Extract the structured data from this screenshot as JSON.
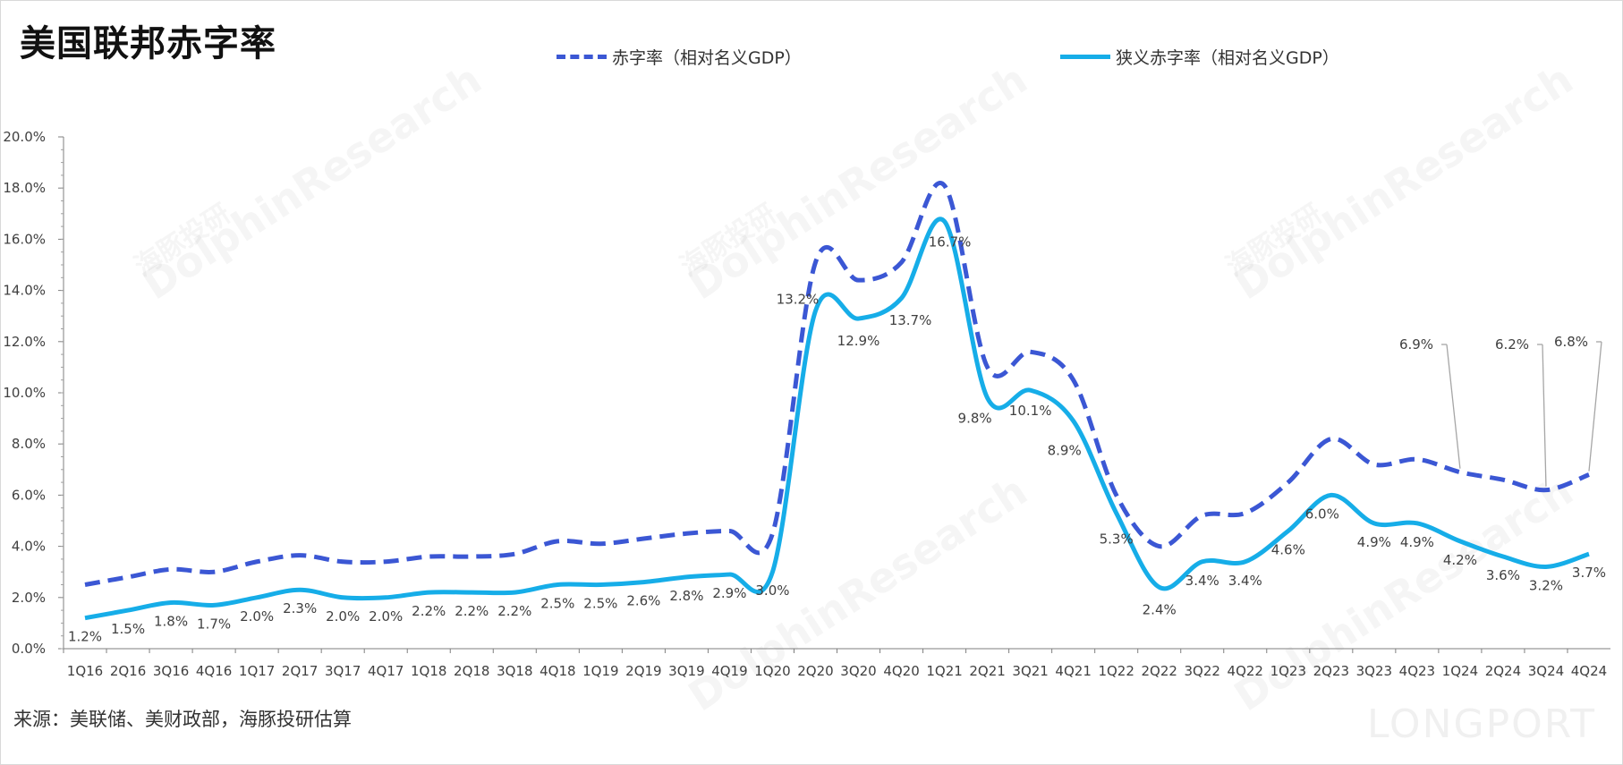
{
  "header": {
    "title": "美国联邦赤字率"
  },
  "footer": {
    "source": "来源：美联储、美财政部，海豚投研估算"
  },
  "watermark": {
    "brand_cn": "海豚投研",
    "brand_en": "DolphinResearch",
    "logo": "LONGPORT"
  },
  "colors": {
    "deficit": "#3b57d4",
    "narrow": "#16ade8",
    "axis": "#7f7f7f",
    "text": "#404040"
  },
  "chart_data": {
    "type": "line",
    "ylim": [
      0,
      20
    ],
    "yticks": [
      "0.0%",
      "2.0%",
      "4.0%",
      "6.0%",
      "8.0%",
      "10.0%",
      "12.0%",
      "14.0%",
      "16.0%",
      "18.0%",
      "20.0%"
    ],
    "categories": [
      "1Q16",
      "2Q16",
      "3Q16",
      "4Q16",
      "1Q17",
      "2Q17",
      "3Q17",
      "4Q17",
      "1Q18",
      "2Q18",
      "3Q18",
      "4Q18",
      "1Q19",
      "2Q19",
      "3Q19",
      "4Q19",
      "1Q20",
      "2Q20",
      "3Q20",
      "4Q20",
      "1Q21",
      "2Q21",
      "3Q21",
      "4Q21",
      "1Q22",
      "2Q22",
      "3Q22",
      "4Q22",
      "1Q23",
      "2Q23",
      "3Q23",
      "4Q23",
      "1Q24",
      "2Q24",
      "3Q24",
      "4Q24"
    ],
    "series": [
      {
        "name": "赤字率（相对名义GDP）",
        "style": "dashed",
        "color": "#3b57d4",
        "values": [
          2.5,
          2.8,
          3.1,
          3.0,
          3.4,
          3.65,
          3.4,
          3.4,
          3.6,
          3.6,
          3.7,
          4.2,
          4.1,
          4.3,
          4.5,
          4.6,
          4.5,
          15.1,
          14.4,
          15.1,
          18.1,
          11.0,
          11.6,
          10.5,
          6.0,
          4.0,
          5.2,
          5.3,
          6.5,
          8.2,
          7.2,
          7.4,
          6.9,
          6.6,
          6.2,
          6.8
        ],
        "labels": [
          "",
          "",
          "",
          "",
          "",
          "",
          "",
          "",
          "",
          "",
          "",
          "",
          "",
          "",
          "",
          "",
          "",
          "",
          "",
          "",
          "",
          "",
          "",
          "",
          "",
          "",
          "",
          "",
          "",
          "",
          "",
          "",
          "6.9%",
          "",
          "6.2%",
          "6.8%"
        ]
      },
      {
        "name": "狭义赤字率（相对名义GDP）",
        "style": "solid",
        "color": "#16ade8",
        "values": [
          1.2,
          1.5,
          1.8,
          1.7,
          2.0,
          2.3,
          2.0,
          2.0,
          2.2,
          2.2,
          2.2,
          2.5,
          2.5,
          2.6,
          2.8,
          2.9,
          3.0,
          13.2,
          12.9,
          13.7,
          16.7,
          9.8,
          10.1,
          8.9,
          5.3,
          2.4,
          3.4,
          3.4,
          4.6,
          6.0,
          4.9,
          4.9,
          4.2,
          3.6,
          3.2,
          3.7
        ],
        "labels": [
          "1.2%",
          "1.5%",
          "1.8%",
          "1.7%",
          "2.0%",
          "2.3%",
          "2.0%",
          "2.0%",
          "2.2%",
          "2.2%",
          "2.2%",
          "2.5%",
          "2.5%",
          "2.6%",
          "2.8%",
          "2.9%",
          "3.0%",
          "13.2%",
          "12.9%",
          "13.7%",
          "16.7%",
          "9.8%",
          "10.1%",
          "8.9%",
          "5.3%",
          "2.4%",
          "3.4%",
          "3.4%",
          "4.6%",
          "6.0%",
          "4.9%",
          "4.9%",
          "4.2%",
          "3.6%",
          "3.2%",
          "3.7%"
        ]
      }
    ]
  }
}
